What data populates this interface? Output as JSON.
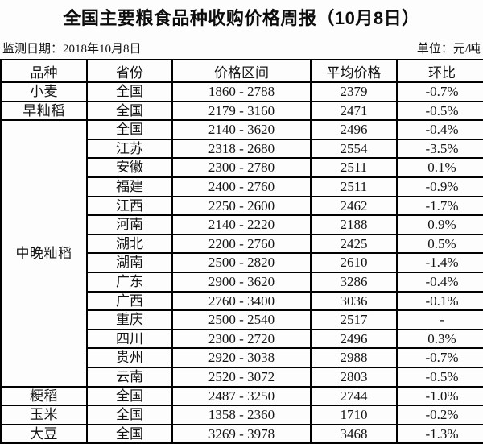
{
  "title": "全国主要粮食品种收购价格周报（10月8日）",
  "meta": {
    "monitor_date": "监测日期：2018年10月8日",
    "unit": "单位：元/吨"
  },
  "colors": {
    "background": "#fdfdfd",
    "border": "#000000",
    "text": "#141414"
  },
  "chart_data": {
    "type": "table",
    "title": "全国主要粮食品种收购价格周报（10月8日）",
    "unit": "元/吨",
    "monitor_date": "2018年10月8日",
    "columns": [
      "品种",
      "省份",
      "价格区间",
      "平均价格",
      "环比"
    ],
    "groups": [
      {
        "variety": "小麦",
        "rows": [
          {
            "province": "全国",
            "range": "1860 - 2788",
            "avg": "2379",
            "change": "-0.7%"
          }
        ]
      },
      {
        "variety": "早籼稻",
        "rows": [
          {
            "province": "全国",
            "range": "2179 - 3160",
            "avg": "2471",
            "change": "-0.5%"
          }
        ]
      },
      {
        "variety": "中晚籼稻",
        "rows": [
          {
            "province": "全国",
            "range": "2140 - 3620",
            "avg": "2496",
            "change": "-0.4%"
          },
          {
            "province": "江苏",
            "range": "2318 - 2680",
            "avg": "2554",
            "change": "-3.5%"
          },
          {
            "province": "安徽",
            "range": "2300 - 2780",
            "avg": "2511",
            "change": "0.1%"
          },
          {
            "province": "福建",
            "range": "2400 - 2760",
            "avg": "2511",
            "change": "-0.9%"
          },
          {
            "province": "江西",
            "range": "2250 - 2600",
            "avg": "2462",
            "change": "-1.7%"
          },
          {
            "province": "河南",
            "range": "2140 - 2220",
            "avg": "2188",
            "change": "0.9%"
          },
          {
            "province": "湖北",
            "range": "2200 - 2760",
            "avg": "2425",
            "change": "0.5%"
          },
          {
            "province": "湖南",
            "range": "2500 - 2820",
            "avg": "2610",
            "change": "-1.4%"
          },
          {
            "province": "广东",
            "range": "2900 - 3620",
            "avg": "3286",
            "change": "-0.4%"
          },
          {
            "province": "广西",
            "range": "2760 - 3400",
            "avg": "3036",
            "change": "-0.1%"
          },
          {
            "province": "重庆",
            "range": "2500 - 2540",
            "avg": "2517",
            "change": "-"
          },
          {
            "province": "四川",
            "range": "2300 - 2720",
            "avg": "2496",
            "change": "0.3%"
          },
          {
            "province": "贵州",
            "range": "2920 - 3038",
            "avg": "2988",
            "change": "-0.7%"
          },
          {
            "province": "云南",
            "range": "2520 - 3072",
            "avg": "2803",
            "change": "-0.5%"
          }
        ]
      },
      {
        "variety": "粳稻",
        "rows": [
          {
            "province": "全国",
            "range": "2487 - 3250",
            "avg": "2744",
            "change": "-1.0%"
          }
        ]
      },
      {
        "variety": "玉米",
        "rows": [
          {
            "province": "全国",
            "range": "1358 - 2360",
            "avg": "1710",
            "change": "-0.2%"
          }
        ]
      },
      {
        "variety": "大豆",
        "rows": [
          {
            "province": "全国",
            "range": "3269 - 3978",
            "avg": "3468",
            "change": "-1.3%"
          }
        ]
      }
    ]
  }
}
